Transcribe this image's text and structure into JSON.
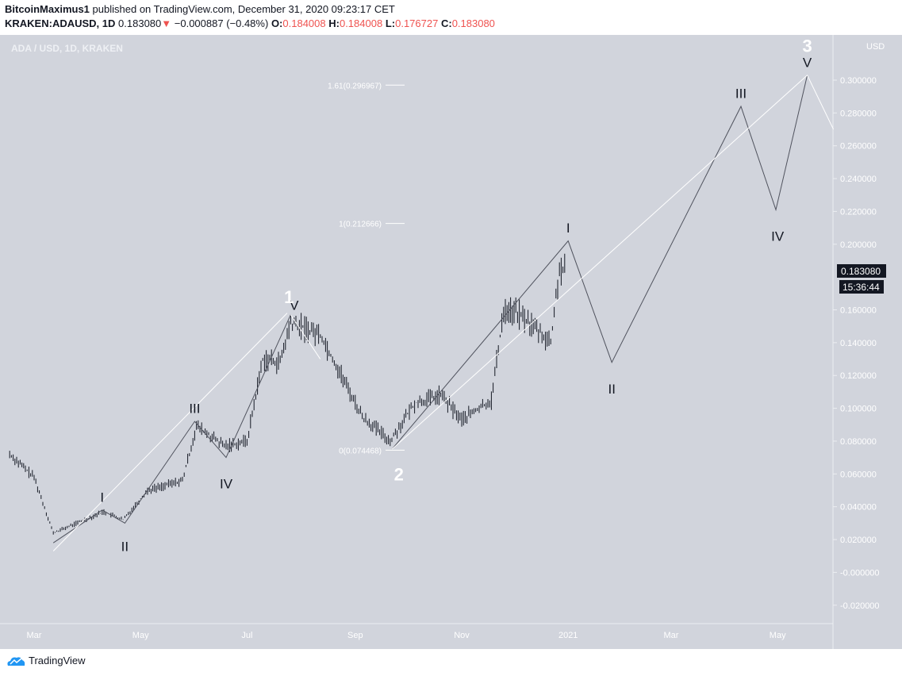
{
  "header": {
    "author": "BitcoinMaximus1",
    "published": "published on TradingView.com, December 31, 2020 09:23:17 CET",
    "symbol": "KRAKEN:ADAUSD, 1D",
    "last": "0.183080",
    "change": "−0.000887 (−0.48%)",
    "open_label": "O:",
    "open": "0.184008",
    "high_label": "H:",
    "high": "0.184008",
    "low_label": "L:",
    "low": "0.176727",
    "close_label": "C:",
    "close": "0.183080"
  },
  "chart_title": "ADA / USD, 1D, KRAKEN",
  "currency": "USD",
  "price_badge": "0.183080",
  "countdown": "15:36:44",
  "footer": {
    "brand": "TradingView"
  },
  "colors": {
    "background": "#d1d4dc",
    "candles": "#131722",
    "wave_line": "#50535e",
    "trend_line": "#ffffff",
    "down": "#ef5350"
  },
  "chart_data": {
    "type": "ohlc",
    "y_ticks": [
      "0.300000",
      "0.280000",
      "0.260000",
      "0.240000",
      "0.220000",
      "0.200000",
      "0.160000",
      "0.140000",
      "0.120000",
      "0.100000",
      "0.080000",
      "0.060000",
      "0.040000",
      "0.020000",
      "-0.000000",
      "-0.020000"
    ],
    "x_ticks": [
      {
        "label": "Mar",
        "date": "2020-03-01"
      },
      {
        "label": "May",
        "date": "2020-05-01"
      },
      {
        "label": "Jul",
        "date": "2020-07-01"
      },
      {
        "label": "Sep",
        "date": "2020-09-01"
      },
      {
        "label": "Nov",
        "date": "2020-11-01"
      },
      {
        "label": "2021",
        "date": "2021-01-01"
      },
      {
        "label": "Mar",
        "date": "2021-03-01"
      },
      {
        "label": "May",
        "date": "2021-05-01"
      }
    ],
    "price_path": [
      [
        "2020-02-16",
        0.072
      ],
      [
        "2020-03-01",
        0.058
      ],
      [
        "2020-03-12",
        0.024
      ],
      [
        "2020-04-10",
        0.037
      ],
      [
        "2020-04-21",
        0.032
      ],
      [
        "2020-05-05",
        0.05
      ],
      [
        "2020-05-25",
        0.056
      ],
      [
        "2020-06-02",
        0.089
      ],
      [
        "2020-06-18",
        0.077
      ],
      [
        "2020-07-01",
        0.08
      ],
      [
        "2020-07-10",
        0.13
      ],
      [
        "2020-07-20",
        0.128
      ],
      [
        "2020-07-26",
        0.152
      ],
      [
        "2020-08-12",
        0.145
      ],
      [
        "2020-08-25",
        0.118
      ],
      [
        "2020-09-05",
        0.095
      ],
      [
        "2020-09-21",
        0.08
      ],
      [
        "2020-10-05",
        0.103
      ],
      [
        "2020-10-20",
        0.108
      ],
      [
        "2020-11-01",
        0.093
      ],
      [
        "2020-11-18",
        0.105
      ],
      [
        "2020-11-25",
        0.16
      ],
      [
        "2020-12-03",
        0.158
      ],
      [
        "2020-12-12",
        0.15
      ],
      [
        "2020-12-22",
        0.14
      ],
      [
        "2020-12-27",
        0.185
      ],
      [
        "2020-12-31",
        0.183
      ]
    ],
    "wave_path": [
      [
        "2020-03-12",
        0.018
      ],
      [
        "2020-04-09",
        0.038
      ],
      [
        "2020-04-22",
        0.03
      ],
      [
        "2020-06-01",
        0.092
      ],
      [
        "2020-06-19",
        0.07
      ],
      [
        "2020-07-26",
        0.157
      ]
    ],
    "projection_path": [
      [
        "2020-09-22",
        0.075
      ],
      [
        "2021-01-01",
        0.202
      ],
      [
        "2021-01-26",
        0.128
      ],
      [
        "2021-04-10",
        0.284
      ],
      [
        "2021-04-30",
        0.221
      ],
      [
        "2021-05-18",
        0.303
      ]
    ],
    "trend_lines": [
      [
        [
          "2020-03-12",
          0.013
        ],
        [
          "2020-07-24",
          0.158
        ]
      ],
      [
        [
          "2020-07-26",
          0.157
        ],
        [
          "2020-08-12",
          0.13
        ]
      ],
      [
        [
          "2020-09-22",
          0.075
        ],
        [
          "2021-05-18",
          0.303
        ],
        [
          "2021-06-02",
          0.27
        ]
      ]
    ],
    "fib_levels": [
      {
        "label": "1.61(0.296967)",
        "price": 0.296967
      },
      {
        "label": "1(0.212666)",
        "price": 0.212666
      },
      {
        "label": "0(0.074468)",
        "price": 0.074468
      }
    ],
    "wave_labels": [
      {
        "text": "I",
        "date": "2020-04-09",
        "price": 0.046,
        "big": false
      },
      {
        "text": "II",
        "date": "2020-04-22",
        "price": 0.016,
        "big": false
      },
      {
        "text": "III",
        "date": "2020-06-01",
        "price": 0.1,
        "big": false
      },
      {
        "text": "IV",
        "date": "2020-06-19",
        "price": 0.054,
        "big": false
      },
      {
        "text": "V",
        "date": "2020-07-28",
        "price": 0.163,
        "big": false
      },
      {
        "text": "1",
        "date": "2020-07-25",
        "price": 0.167,
        "big": true
      },
      {
        "text": "2",
        "date": "2020-09-26",
        "price": 0.059,
        "big": true
      },
      {
        "text": "I",
        "date": "2021-01-01",
        "price": 0.21,
        "big": false
      },
      {
        "text": "II",
        "date": "2021-01-26",
        "price": 0.112,
        "big": false
      },
      {
        "text": "III",
        "date": "2021-04-10",
        "price": 0.292,
        "big": false
      },
      {
        "text": "IV",
        "date": "2021-05-01",
        "price": 0.205,
        "big": false
      },
      {
        "text": "V",
        "date": "2021-05-18",
        "price": 0.311,
        "big": false
      },
      {
        "text": "3",
        "date": "2021-05-18",
        "price": 0.32,
        "big": true
      }
    ]
  }
}
